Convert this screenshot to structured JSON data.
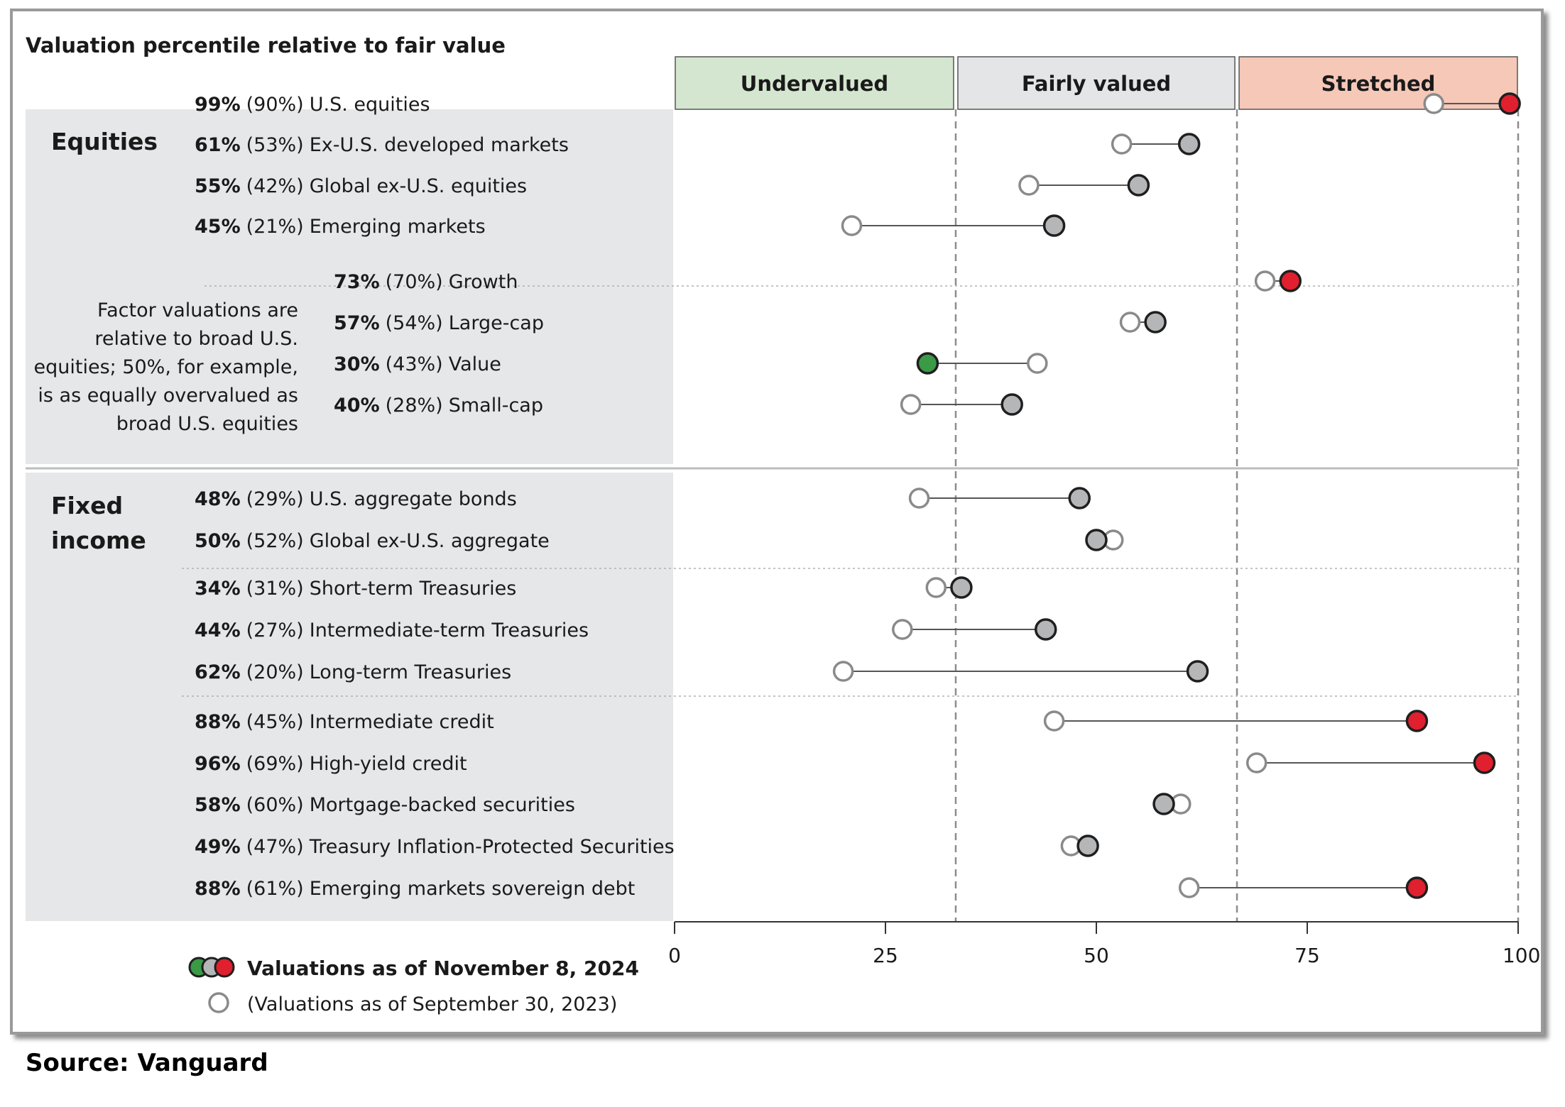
{
  "chart_title": "Valuation percentile relative to fair value",
  "zones": [
    {
      "label": "Undervalued",
      "color": "#d4e6cf"
    },
    {
      "label": "Fairly valued",
      "color": "#e4e5e6"
    },
    {
      "label": "Stretched",
      "color": "#f5c8b8"
    }
  ],
  "groups": [
    {
      "label_lines": [
        "Equities"
      ]
    },
    {
      "label_lines": [
        "Fixed",
        "income"
      ]
    }
  ],
  "factor_note_lines": [
    "Factor valuations are",
    "relative to broad U.S.",
    "equities; 50%, for example,",
    "is as equally overvalued as",
    "broad U.S. equities"
  ],
  "legend": {
    "current_label": "Valuations as of November 8, 2024",
    "prior_label": "(Valuations as of September 30, 2023)"
  },
  "source": "Source: Vanguard",
  "colors": {
    "undervalued_dot": "#3a9a46",
    "fair_dot": "#b5b6b8",
    "stretched_dot": "#e0202e",
    "open_dot_stroke": "#8a8a8a",
    "panel_bg": "#e6e7e8",
    "connector": "#555555"
  },
  "chart_data": {
    "type": "dumbbell",
    "xlabel": "",
    "ylabel": "",
    "xlim": [
      0,
      100
    ],
    "x_ticks": [
      "0",
      "25",
      "50",
      "75",
      "100%"
    ],
    "zone_boundaries": [
      33.33,
      66.67
    ],
    "rows": [
      {
        "name": "U.S. equities",
        "pct_label": "99%",
        "prior_label": "(90%)",
        "current": 99,
        "prior": 90,
        "status": "stretched"
      },
      {
        "name": "Ex-U.S. developed markets",
        "pct_label": "61%",
        "prior_label": "(53%)",
        "current": 61,
        "prior": 53,
        "status": "fair"
      },
      {
        "name": "Global ex-U.S. equities",
        "pct_label": "55%",
        "prior_label": "(42%)",
        "current": 55,
        "prior": 42,
        "status": "fair"
      },
      {
        "name": "Emerging markets",
        "pct_label": "45%",
        "prior_label": "(21%)",
        "current": 45,
        "prior": 21,
        "status": "fair"
      },
      {
        "name": "Growth",
        "pct_label": "73%",
        "prior_label": "(70%)",
        "current": 73,
        "prior": 70,
        "status": "stretched"
      },
      {
        "name": "Large-cap",
        "pct_label": "57%",
        "prior_label": "(54%)",
        "current": 57,
        "prior": 54,
        "status": "fair"
      },
      {
        "name": "Value",
        "pct_label": "30%",
        "prior_label": "(43%)",
        "current": 30,
        "prior": 43,
        "status": "undervalued"
      },
      {
        "name": "Small-cap",
        "pct_label": "40%",
        "prior_label": "(28%)",
        "current": 40,
        "prior": 28,
        "status": "fair"
      },
      {
        "name": "U.S. aggregate bonds",
        "pct_label": "48%",
        "prior_label": "(29%)",
        "current": 48,
        "prior": 29,
        "status": "fair"
      },
      {
        "name": "Global ex-U.S. aggregate",
        "pct_label": "50%",
        "prior_label": "(52%)",
        "current": 50,
        "prior": 52,
        "status": "fair"
      },
      {
        "name": "Short-term Treasuries",
        "pct_label": "34%",
        "prior_label": "(31%)",
        "current": 34,
        "prior": 31,
        "status": "fair"
      },
      {
        "name": "Intermediate-term Treasuries",
        "pct_label": "44%",
        "prior_label": "(27%)",
        "current": 44,
        "prior": 27,
        "status": "fair"
      },
      {
        "name": "Long-term Treasuries",
        "pct_label": "62%",
        "prior_label": "(20%)",
        "current": 62,
        "prior": 20,
        "status": "fair"
      },
      {
        "name": "Intermediate credit",
        "pct_label": "88%",
        "prior_label": "(45%)",
        "current": 88,
        "prior": 45,
        "status": "stretched"
      },
      {
        "name": "High-yield credit",
        "pct_label": "96%",
        "prior_label": "(69%)",
        "current": 96,
        "prior": 69,
        "status": "stretched"
      },
      {
        "name": "Mortgage-backed securities",
        "pct_label": "58%",
        "prior_label": "(60%)",
        "current": 58,
        "prior": 60,
        "status": "fair"
      },
      {
        "name": "Treasury Inflation-Protected Securities",
        "pct_label": "49%",
        "prior_label": "(47%)",
        "current": 49,
        "prior": 47,
        "status": "fair"
      },
      {
        "name": "Emerging markets sovereign debt",
        "pct_label": "88%",
        "prior_label": "(61%)",
        "current": 88,
        "prior": 61,
        "status": "stretched"
      }
    ]
  }
}
